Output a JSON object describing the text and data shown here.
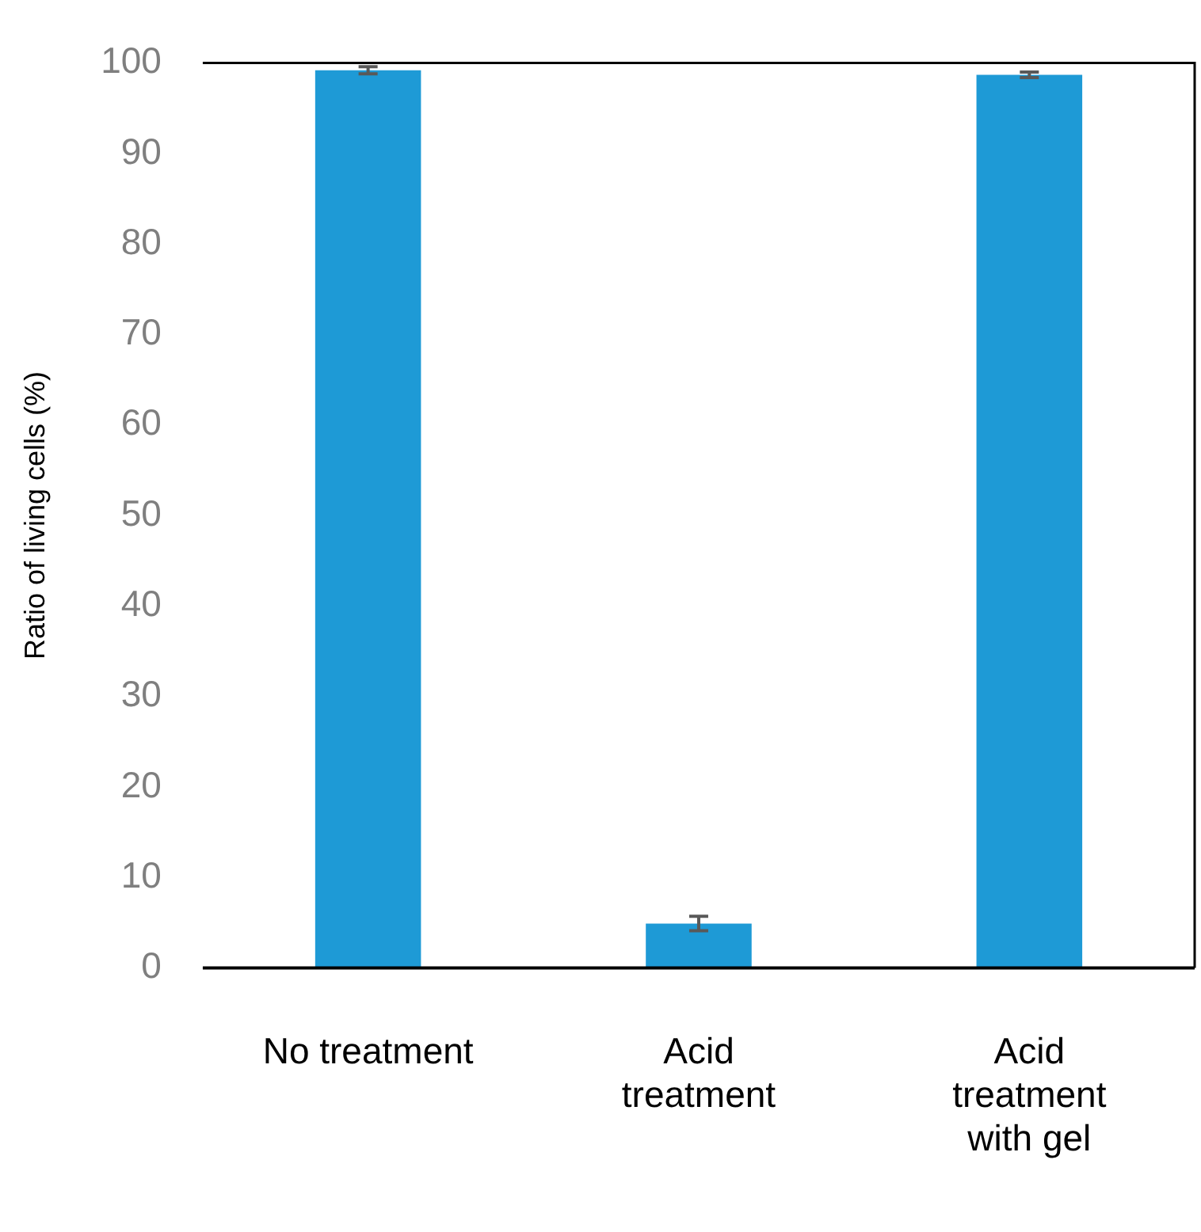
{
  "chart_data": {
    "type": "bar",
    "ylabel": "Ratio of living cells (%)",
    "categories": [
      "No treatment",
      "Acid treatment",
      "Acid treatment with gel"
    ],
    "values": [
      99.2,
      4.9,
      98.7
    ],
    "errors": [
      0.4,
      0.8,
      0.3
    ],
    "color": "#1e9ad6",
    "ylim": [
      0,
      100
    ],
    "yticks": [
      0,
      10,
      20,
      30,
      40,
      50,
      60,
      70,
      80,
      90,
      100
    ],
    "grid": false,
    "legend": false
  }
}
